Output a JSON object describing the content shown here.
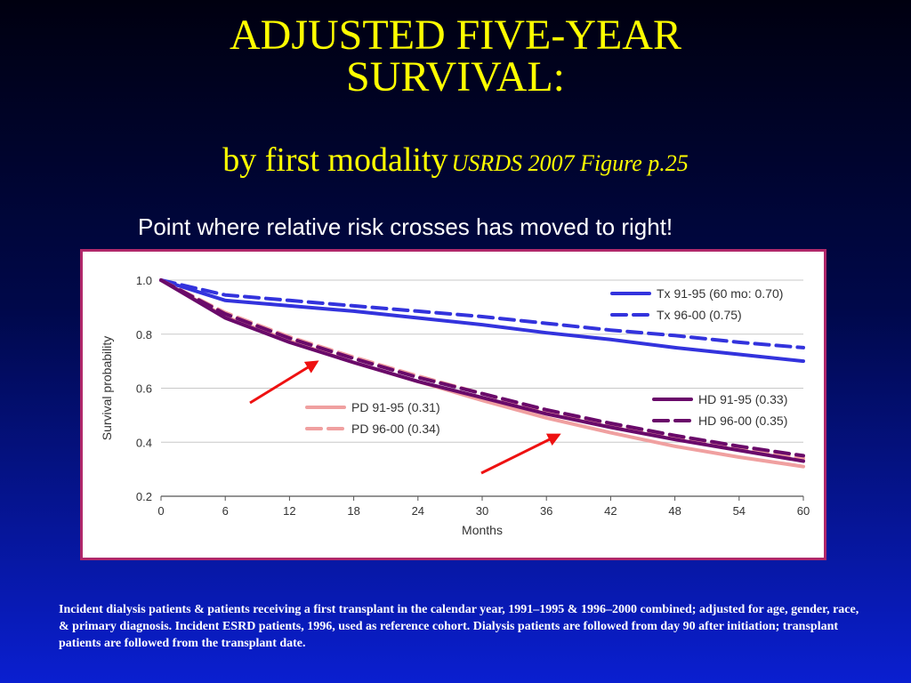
{
  "slide": {
    "title_line1": "ADJUSTED FIVE-YEAR",
    "title_line2": "SURVIVAL:",
    "subtitle_main": "by first modality",
    "subtitle_ref": "USRDS 2007  Figure p.25",
    "note": "Point where relative risk crosses has moved to right!",
    "caption": "Incident dialysis patients & patients receiving a first transplant in the calendar year, 1991–1995 & 1996–2000 combined; adjusted for age, gender, race, & primary diagnosis. Incident ESRD patients, 1996, used as reference cohort. Dialysis patients are followed from day 90 after initiation; transplant patients are followed from the transplant date.",
    "colors": {
      "title": "#ffff00",
      "arrow": "#ee1111",
      "panel_border": "#b0286a"
    }
  },
  "chart_data": {
    "type": "line",
    "xlabel": "Months",
    "ylabel": "Survival probability",
    "xlim": [
      0,
      60
    ],
    "ylim": [
      0.2,
      1.0
    ],
    "xticks": [
      0,
      6,
      12,
      18,
      24,
      30,
      36,
      42,
      48,
      54,
      60
    ],
    "yticks": [
      "0.2",
      "0.4",
      "0.6",
      "0.8",
      "1.0"
    ],
    "grid": "horizontal",
    "x": [
      0,
      6,
      12,
      18,
      24,
      30,
      36,
      42,
      48,
      54,
      60
    ],
    "series": [
      {
        "name": "Tx 91-95 (60 mo: 0.70)",
        "color": "#3333dd",
        "dash": false,
        "group": "tx",
        "values": [
          1.0,
          0.925,
          0.905,
          0.885,
          0.86,
          0.835,
          0.805,
          0.78,
          0.75,
          0.725,
          0.7
        ]
      },
      {
        "name": "Tx 96-00 (0.75)",
        "color": "#3333dd",
        "dash": true,
        "group": "tx",
        "values": [
          1.0,
          0.945,
          0.925,
          0.905,
          0.885,
          0.865,
          0.84,
          0.815,
          0.795,
          0.77,
          0.75
        ]
      },
      {
        "name": "PD 91-95 (0.31)",
        "color": "#f0a0a0",
        "dash": false,
        "group": "pd",
        "values": [
          1.0,
          0.865,
          0.775,
          0.695,
          0.625,
          0.555,
          0.49,
          0.435,
          0.385,
          0.345,
          0.31
        ]
      },
      {
        "name": "PD 96-00 (0.34)",
        "color": "#f0a0a0",
        "dash": true,
        "group": "pd",
        "values": [
          1.0,
          0.88,
          0.79,
          0.715,
          0.645,
          0.58,
          0.515,
          0.465,
          0.415,
          0.375,
          0.34
        ]
      },
      {
        "name": "HD 91-95 (0.33)",
        "color": "#6a0a6a",
        "dash": false,
        "group": "hd",
        "values": [
          1.0,
          0.86,
          0.77,
          0.695,
          0.625,
          0.565,
          0.505,
          0.455,
          0.41,
          0.37,
          0.33
        ]
      },
      {
        "name": "HD 96-00 (0.35)",
        "color": "#6a0a6a",
        "dash": true,
        "group": "hd",
        "values": [
          1.0,
          0.875,
          0.785,
          0.71,
          0.64,
          0.58,
          0.52,
          0.47,
          0.425,
          0.385,
          0.35
        ]
      }
    ],
    "legend": [
      "top-right (Tx)",
      "center (PD)",
      "right (HD)"
    ]
  }
}
